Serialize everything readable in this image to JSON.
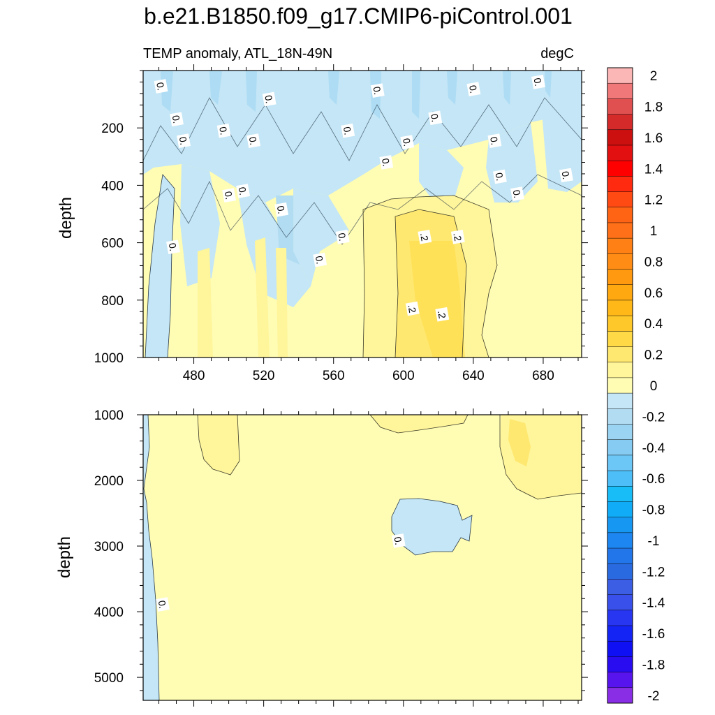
{
  "chart_data": {
    "type": "contour",
    "title": "b.e21.B1850.f09_g17.CMIP6-piControl.001",
    "subtitle_left": "TEMP anomaly, ATL_18N-49N",
    "subtitle_right": "degC",
    "x_ticks": [
      "480",
      "520",
      "560",
      "600",
      "640",
      "680"
    ],
    "x_tick_values": [
      480,
      520,
      560,
      600,
      640,
      680
    ],
    "xlim": [
      451,
      702
    ],
    "panels": [
      {
        "name": "upper",
        "ylabel": "depth",
        "ylim": [
          0,
          1000
        ],
        "y_ticks": [
          "200",
          "400",
          "600",
          "800",
          "1000"
        ],
        "y_tick_values": [
          200,
          400,
          600,
          800,
          1000
        ],
        "contour_labels": [
          {
            "text": "0.",
            "x": 461,
            "y": 55
          },
          {
            "text": "0.",
            "x": 523,
            "y": 100
          },
          {
            "text": "0.",
            "x": 470,
            "y": 170
          },
          {
            "text": "0.",
            "x": 474,
            "y": 245
          },
          {
            "text": "0.",
            "x": 497,
            "y": 210
          },
          {
            "text": "0.",
            "x": 514,
            "y": 245
          },
          {
            "text": "0.",
            "x": 585,
            "y": 70
          },
          {
            "text": "0.",
            "x": 640,
            "y": 65
          },
          {
            "text": "0.",
            "x": 677,
            "y": 40
          },
          {
            "text": "0.",
            "x": 568,
            "y": 210
          },
          {
            "text": "0.",
            "x": 602,
            "y": 250
          },
          {
            "text": "0.",
            "x": 618,
            "y": 165
          },
          {
            "text": "0.",
            "x": 652,
            "y": 245
          },
          {
            "text": "0.",
            "x": 590,
            "y": 320
          },
          {
            "text": "0.",
            "x": 655,
            "y": 370
          },
          {
            "text": "0.",
            "x": 693,
            "y": 365
          },
          {
            "text": "0.",
            "x": 665,
            "y": 430
          },
          {
            "text": "0.",
            "x": 500,
            "y": 435
          },
          {
            "text": "0.",
            "x": 508,
            "y": 420
          },
          {
            "text": "0.",
            "x": 530,
            "y": 485
          },
          {
            "text": "0.",
            "x": 565,
            "y": 580
          },
          {
            "text": "0.",
            "x": 468,
            "y": 615
          },
          {
            "text": "0.",
            "x": 552,
            "y": 660
          },
          {
            "text": ".2",
            "x": 612,
            "y": 580
          },
          {
            "text": ".2",
            "x": 631,
            "y": 580
          },
          {
            "text": ".2",
            "x": 605,
            "y": 830
          },
          {
            "text": ".2",
            "x": 622,
            "y": 850
          }
        ]
      },
      {
        "name": "lower",
        "ylabel": "depth",
        "ylim": [
          1000,
          5350
        ],
        "y_ticks": [
          "1000",
          "2000",
          "3000",
          "4000",
          "5000"
        ],
        "y_tick_values": [
          1000,
          2000,
          3000,
          4000,
          5000
        ],
        "contour_labels": [
          {
            "text": "0.",
            "x": 462,
            "y": 3890
          },
          {
            "text": "0.",
            "x": 597,
            "y": 2920
          }
        ]
      }
    ],
    "colorbar": {
      "levels": [
        {
          "label": "2",
          "color": "#fbb6b6"
        },
        {
          "label": "",
          "color": "#f07878"
        },
        {
          "label": "1.8",
          "color": "#e05050"
        },
        {
          "label": "",
          "color": "#d42a2a"
        },
        {
          "label": "1.6",
          "color": "#cc1010"
        },
        {
          "label": "",
          "color": "#e21010"
        },
        {
          "label": "1.4",
          "color": "#ff0000"
        },
        {
          "label": "",
          "color": "#ff2a10"
        },
        {
          "label": "1.2",
          "color": "#ff4a14"
        },
        {
          "label": "",
          "color": "#ff6414"
        },
        {
          "label": "1",
          "color": "#ff7018"
        },
        {
          "label": "",
          "color": "#ff8014"
        },
        {
          "label": "0.8",
          "color": "#ff8c14"
        },
        {
          "label": "",
          "color": "#ff9a10"
        },
        {
          "label": "0.6",
          "color": "#ffa810"
        },
        {
          "label": "",
          "color": "#ffb818"
        },
        {
          "label": "0.4",
          "color": "#ffc82a"
        },
        {
          "label": "",
          "color": "#ffda46"
        },
        {
          "label": "0.2",
          "color": "#ffe870"
        },
        {
          "label": "",
          "color": "#fff59a"
        },
        {
          "label": "0",
          "color": "#fffcb4"
        },
        {
          "label": "",
          "color": "#c4e6f6"
        },
        {
          "label": "-0.2",
          "color": "#b2dcf2"
        },
        {
          "label": "",
          "color": "#9ad4f2"
        },
        {
          "label": "-0.4",
          "color": "#86ccf2"
        },
        {
          "label": "",
          "color": "#6cc6f6"
        },
        {
          "label": "-0.6",
          "color": "#4ebef8"
        },
        {
          "label": "",
          "color": "#18bdf8"
        },
        {
          "label": "-0.8",
          "color": "#10acf8"
        },
        {
          "label": "",
          "color": "#1698f2"
        },
        {
          "label": "-1",
          "color": "#1e86f0"
        },
        {
          "label": "",
          "color": "#2276ea"
        },
        {
          "label": "-1.2",
          "color": "#2a6ae0"
        },
        {
          "label": "",
          "color": "#3c5ee4"
        },
        {
          "label": "-1.4",
          "color": "#3a50ea"
        },
        {
          "label": "",
          "color": "#2836f2"
        },
        {
          "label": "-1.6",
          "color": "#1424f4"
        },
        {
          "label": "",
          "color": "#1010f4"
        },
        {
          "label": "-1.8",
          "color": "#2a0cf0"
        },
        {
          "label": "",
          "color": "#5814ec"
        },
        {
          "label": "-2",
          "color": "#8a2ee6"
        }
      ]
    }
  }
}
